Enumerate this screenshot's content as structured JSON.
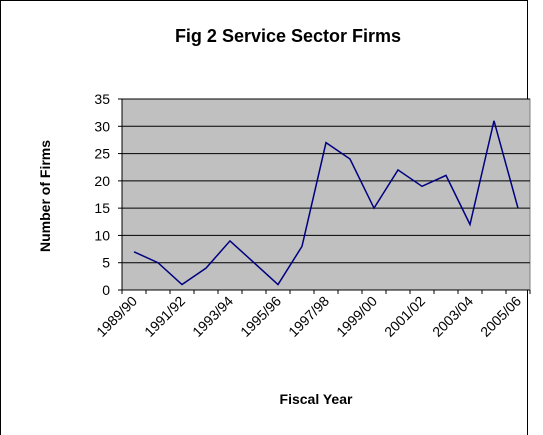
{
  "chart_data": {
    "type": "line",
    "title": "Fig 2 Service Sector Firms",
    "x_label": "Fiscal Year",
    "y_label": "Number of Firms",
    "categories": [
      "1989/90",
      null,
      "1991/92",
      null,
      "1993/94",
      null,
      "1995/96",
      null,
      "1997/98",
      null,
      "1999/00",
      null,
      "2001/02",
      null,
      "2003/04",
      null,
      "2005/06"
    ],
    "values": [
      7,
      5,
      1,
      4,
      9,
      5,
      1,
      8,
      27,
      24,
      15,
      22,
      19,
      21,
      12,
      31,
      15
    ],
    "color": "#000080",
    "plot_background": "#c0c0c0",
    "ylim": [
      0,
      35
    ],
    "yticks": [
      0,
      5,
      10,
      15,
      20,
      25,
      30,
      35
    ],
    "grid": true
  }
}
